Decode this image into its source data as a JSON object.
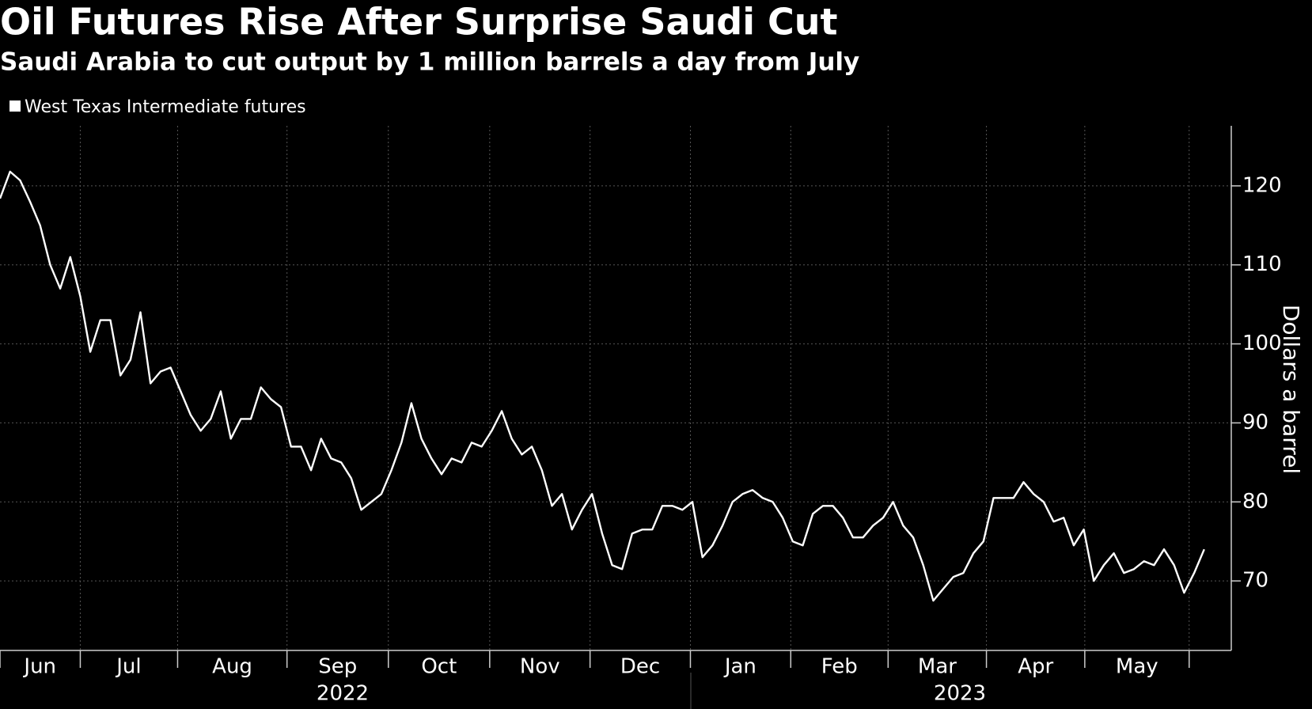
{
  "chart_data": {
    "type": "line",
    "title": "Oil Futures Rise After Surprise Saudi Cut",
    "subtitle": "Saudi Arabia to cut output by 1 million barrels a day from July",
    "y_axis_label": "Dollars a barrel",
    "series": [
      {
        "name": "West Texas Intermediate futures",
        "color": "#ffffff",
        "values": [
          118.4,
          121.8,
          120.7,
          118,
          115,
          110,
          107,
          111,
          106,
          99,
          103,
          103,
          96,
          98,
          104,
          95,
          96.5,
          97,
          94,
          91,
          89,
          90.5,
          94,
          88,
          90.5,
          90.5,
          94.5,
          93,
          92,
          87,
          87,
          84,
          88,
          85.5,
          85,
          83,
          79,
          80,
          81,
          84,
          87.5,
          92.5,
          88,
          85.5,
          83.5,
          85.5,
          85,
          87.5,
          87,
          89,
          91.5,
          88,
          86,
          87,
          84,
          79.5,
          81,
          76.5,
          79,
          81,
          76,
          72,
          71.5,
          76,
          76.5,
          76.5,
          79.5,
          79.5,
          79,
          80,
          73,
          74.5,
          77,
          80,
          81,
          81.5,
          80.5,
          80,
          78,
          75,
          74.5,
          78.5,
          79.5,
          79.5,
          78,
          75.5,
          75.5,
          77,
          78,
          80,
          77,
          75.5,
          72,
          67.5,
          69,
          70.5,
          71,
          73.5,
          75,
          80.5,
          80.5,
          80.5,
          82.5,
          81,
          80,
          77.5,
          78,
          74.5,
          76.5,
          70,
          72,
          73.5,
          71,
          71.5,
          72.5,
          72,
          74,
          72,
          68.5,
          71,
          74
        ]
      }
    ],
    "months": [
      "Jun",
      "Jul",
      "Aug",
      "Sep",
      "Oct",
      "Nov",
      "Dec",
      "Jan",
      "Feb",
      "Mar",
      "Apr",
      "May"
    ],
    "years": [
      "2022",
      "2023"
    ],
    "xlim": [
      0,
      122.7
    ],
    "xticks": [
      0,
      8,
      17.7,
      28.6,
      38.7,
      48.8,
      58.8,
      68.8,
      78.8,
      88.5,
      98.3,
      108.1,
      118.5
    ],
    "ylim": [
      61.2,
      127.6
    ],
    "yticks": [
      70,
      80,
      90,
      100,
      110,
      120
    ],
    "grid": true,
    "legend": "top-left"
  }
}
